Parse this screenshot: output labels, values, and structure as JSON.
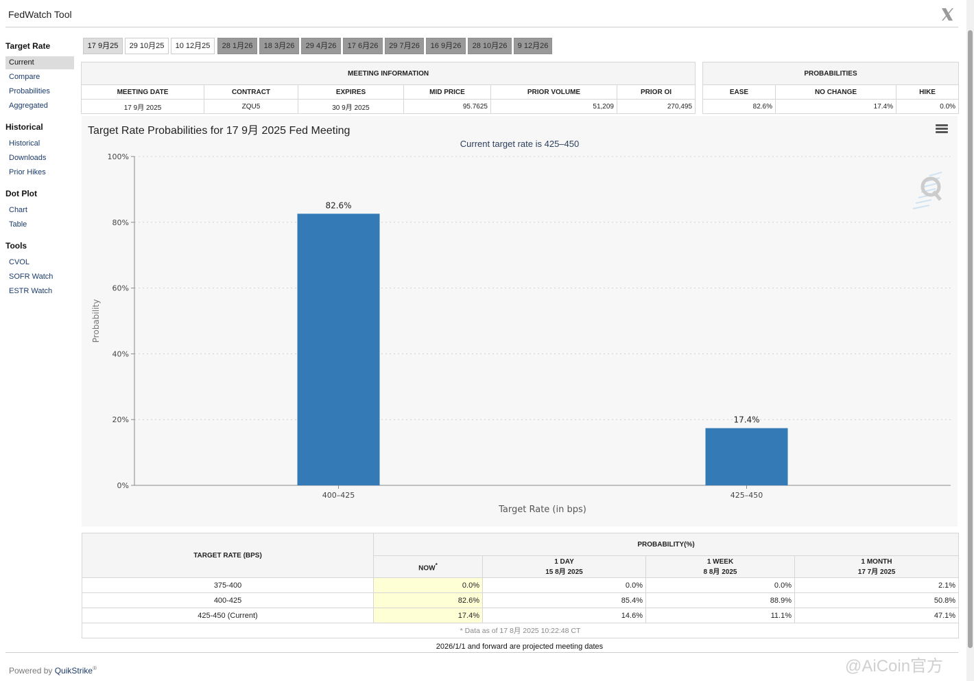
{
  "app": {
    "title": "FedWatch Tool"
  },
  "sidebar": {
    "sections": [
      {
        "title": "Target Rate",
        "items": [
          "Current",
          "Compare",
          "Probabilities",
          "Aggregated"
        ]
      },
      {
        "title": "Historical",
        "items": [
          "Historical",
          "Downloads",
          "Prior Hikes"
        ]
      },
      {
        "title": "Dot Plot",
        "items": [
          "Chart",
          "Table"
        ]
      },
      {
        "title": "Tools",
        "items": [
          "CVOL",
          "SOFR Watch",
          "ESTR Watch"
        ]
      }
    ],
    "active_item": "Current"
  },
  "meeting_tabs": [
    "17 9月25",
    "29 10月25",
    "10 12月25",
    "28 1月26",
    "18 3月26",
    "29 4月26",
    "17 6月26",
    "29 7月26",
    "16 9月26",
    "28 10月26",
    "9 12月26"
  ],
  "meeting_info": {
    "header": "MEETING INFORMATION",
    "columns": [
      "MEETING DATE",
      "CONTRACT",
      "EXPIRES",
      "MID PRICE",
      "PRIOR VOLUME",
      "PRIOR OI"
    ],
    "values": [
      "17 9月 2025",
      "ZQU5",
      "30 9月 2025",
      "95.7625",
      "51,209",
      "270,495"
    ]
  },
  "probabilities": {
    "header": "PROBABILITIES",
    "columns": [
      "EASE",
      "NO CHANGE",
      "HIKE"
    ],
    "values": [
      "82.6%",
      "17.4%",
      "0.0%"
    ]
  },
  "chart": {
    "title": "Target Rate Probabilities for 17 9月 2025 Fed Meeting",
    "subtitle": "Current target rate is 425–450"
  },
  "chart_data": {
    "type": "bar",
    "categories": [
      "400–425",
      "425–450"
    ],
    "values": [
      82.6,
      17.4
    ],
    "value_labels": [
      "82.6%",
      "17.4%"
    ],
    "xlabel": "Target Rate (in bps)",
    "ylabel": "Probability",
    "ylim": [
      0,
      100
    ],
    "yticks": [
      "0%",
      "20%",
      "40%",
      "60%",
      "80%",
      "100%"
    ],
    "grid": true,
    "bar_color": "#337ab7"
  },
  "prob_table": {
    "target_header": "TARGET RATE (BPS)",
    "prob_header": "PROBABILITY(%)",
    "columns": [
      {
        "label": "NOW",
        "sub": ""
      },
      {
        "label": "1 DAY",
        "sub": "15 8月 2025"
      },
      {
        "label": "1 WEEK",
        "sub": "8 8月 2025"
      },
      {
        "label": "1 MONTH",
        "sub": "17 7月 2025"
      }
    ],
    "now_marker": "*",
    "rows": [
      {
        "rate": "375-400",
        "values": [
          "0.0%",
          "0.0%",
          "0.0%",
          "2.1%"
        ]
      },
      {
        "rate": "400-425",
        "values": [
          "82.6%",
          "85.4%",
          "88.9%",
          "50.8%"
        ]
      },
      {
        "rate": "425-450 (Current)",
        "values": [
          "17.4%",
          "14.6%",
          "11.1%",
          "47.1%"
        ]
      }
    ],
    "footnote": "* Data as of 17 8月 2025 10:22:48 CT"
  },
  "projected_note": "2026/1/1 and forward are projected meeting dates",
  "footer": {
    "powered_by": "Powered by",
    "brand": "QuikStrike",
    "reg": "®"
  },
  "watermark": "@AiCoin官方"
}
